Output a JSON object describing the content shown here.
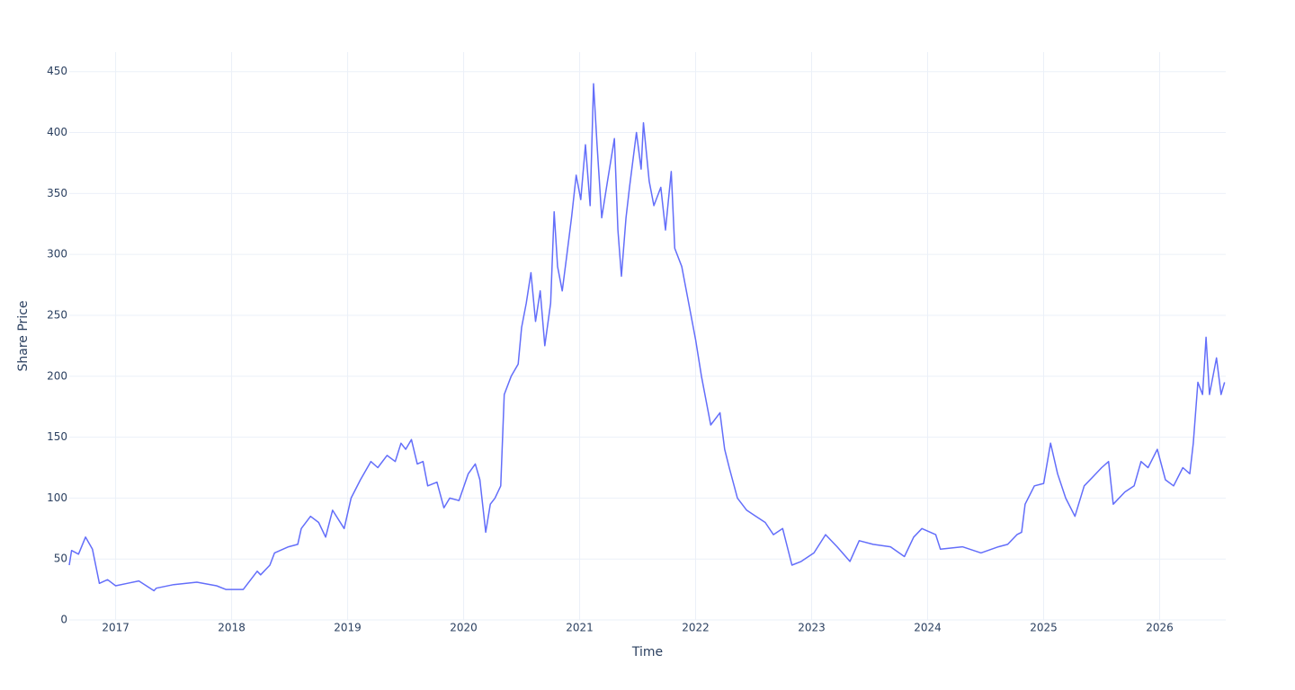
{
  "chart_data": {
    "type": "line",
    "x_label": "Time",
    "y_label": "Share Price",
    "color": "#636efa",
    "grid": true,
    "xlim": [
      2016.6,
      2026.57
    ],
    "xticks": [
      2017,
      2018,
      2019,
      2020,
      2021,
      2022,
      2023,
      2024,
      2025,
      2026
    ],
    "ylim": [
      0,
      466
    ],
    "yticks": [
      0,
      50,
      100,
      150,
      200,
      250,
      300,
      350,
      400,
      450
    ],
    "x": [
      2016.6,
      2016.62,
      2016.68,
      2016.74,
      2016.8,
      2016.86,
      2016.93,
      2017.0,
      2017.1,
      2017.2,
      2017.33,
      2017.35,
      2017.5,
      2017.7,
      2017.87,
      2017.95,
      2018.1,
      2018.22,
      2018.25,
      2018.33,
      2018.37,
      2018.49,
      2018.57,
      2018.6,
      2018.68,
      2018.75,
      2018.81,
      2018.87,
      2018.97,
      2019.03,
      2019.11,
      2019.2,
      2019.26,
      2019.34,
      2019.41,
      2019.46,
      2019.5,
      2019.55,
      2019.6,
      2019.65,
      2019.69,
      2019.77,
      2019.83,
      2019.88,
      2019.96,
      2020.04,
      2020.1,
      2020.14,
      2020.19,
      2020.23,
      2020.27,
      2020.32,
      2020.35,
      2020.41,
      2020.47,
      2020.5,
      2020.54,
      2020.58,
      2020.62,
      2020.66,
      2020.7,
      2020.75,
      2020.78,
      2020.81,
      2020.85,
      2020.89,
      2020.93,
      2020.97,
      2021.01,
      2021.05,
      2021.09,
      2021.12,
      2021.15,
      2021.19,
      2021.24,
      2021.3,
      2021.33,
      2021.36,
      2021.4,
      2021.43,
      2021.49,
      2021.53,
      2021.55,
      2021.6,
      2021.64,
      2021.7,
      2021.74,
      2021.79,
      2021.82,
      2021.88,
      2021.94,
      2022.0,
      2022.05,
      2022.13,
      2022.21,
      2022.25,
      2022.29,
      2022.36,
      2022.44,
      2022.52,
      2022.6,
      2022.67,
      2022.75,
      2022.83,
      2022.91,
      2023.02,
      2023.12,
      2023.22,
      2023.33,
      2023.41,
      2023.53,
      2023.68,
      2023.8,
      2023.88,
      2023.95,
      2024.07,
      2024.11,
      2024.3,
      2024.46,
      2024.61,
      2024.69,
      2024.77,
      2024.81,
      2024.84,
      2024.92,
      2025.0,
      2025.06,
      2025.12,
      2025.19,
      2025.27,
      2025.35,
      2025.43,
      2025.5,
      2025.56,
      2025.6,
      2025.7,
      2025.78,
      2025.84,
      2025.9,
      2025.98,
      2026.05,
      2026.12,
      2026.2,
      2026.26,
      2026.29,
      2026.33,
      2026.37,
      2026.4,
      2026.43,
      2026.49,
      2026.53,
      2026.56
    ],
    "values": [
      45,
      57,
      54,
      68,
      58,
      30,
      33,
      28,
      30,
      32,
      24,
      26,
      29,
      31,
      28,
      25,
      25,
      40,
      37,
      45,
      55,
      60,
      62,
      75,
      85,
      80,
      68,
      90,
      75,
      100,
      115,
      130,
      125,
      135,
      130,
      145,
      140,
      148,
      128,
      130,
      110,
      113,
      92,
      100,
      98,
      120,
      128,
      115,
      72,
      95,
      100,
      110,
      185,
      200,
      210,
      240,
      260,
      285,
      245,
      270,
      225,
      260,
      335,
      290,
      270,
      300,
      330,
      365,
      345,
      390,
      340,
      440,
      390,
      330,
      360,
      395,
      320,
      282,
      330,
      355,
      400,
      370,
      408,
      360,
      340,
      355,
      320,
      368,
      305,
      290,
      260,
      230,
      200,
      160,
      170,
      140,
      125,
      100,
      90,
      85,
      80,
      70,
      75,
      45,
      48,
      55,
      70,
      60,
      48,
      65,
      62,
      60,
      52,
      68,
      75,
      70,
      58,
      60,
      55,
      60,
      62,
      70,
      72,
      95,
      110,
      112,
      145,
      120,
      100,
      85,
      110,
      118,
      125,
      130,
      95,
      105,
      110,
      130,
      125,
      140,
      115,
      110,
      125,
      120,
      145,
      195,
      185,
      232,
      185,
      215,
      185,
      195
    ]
  }
}
